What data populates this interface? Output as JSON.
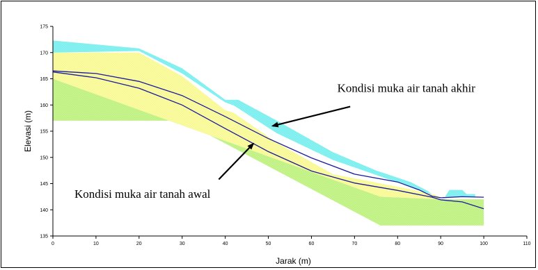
{
  "chart_data": {
    "type": "area",
    "title": "",
    "xlabel": "Jarak (m)",
    "ylabel": "Elevasi (m)",
    "xlim": [
      0,
      110
    ],
    "ylim": [
      135,
      175
    ],
    "xticks": [
      0,
      10,
      20,
      30,
      40,
      50,
      60,
      70,
      80,
      90,
      100,
      110
    ],
    "yticks": [
      135,
      140,
      145,
      150,
      155,
      160,
      165,
      170,
      175
    ],
    "grid": false,
    "colors": {
      "bottom_layer": "#c6f58c",
      "middle_layer": "#fbfb9f",
      "top_layer": "#86f2f2",
      "water_line": "#1a1aa0",
      "annotation": "#000000"
    },
    "layers": [
      {
        "name": "bottom layer",
        "color_key": "bottom_layer",
        "x": [
          0,
          30,
          76,
          100,
          100,
          90,
          76,
          0
        ],
        "y": [
          157,
          157,
          137,
          137,
          142,
          142,
          142.5,
          165
        ]
      },
      {
        "name": "middle layer",
        "color_key": "middle_layer",
        "x": [
          0,
          0,
          20,
          30,
          40,
          42,
          52,
          65,
          75,
          83,
          89,
          90,
          76,
          0
        ],
        "y": [
          165,
          170,
          170,
          165.5,
          159,
          158.5,
          152.8,
          146.8,
          145.2,
          143.9,
          142.8,
          142,
          142.5,
          165
        ]
      },
      {
        "name": "top layer",
        "color_key": "top_layer",
        "x": [
          0,
          0,
          20,
          30,
          40,
          43,
          52,
          65,
          75,
          83,
          87,
          88,
          87,
          79,
          65,
          52,
          42,
          40,
          30,
          20,
          0
        ],
        "y": [
          170,
          172.3,
          170.8,
          167,
          161,
          161,
          157,
          151,
          147.5,
          145.3,
          143.6,
          142.9,
          143.2,
          145.5,
          149.5,
          154.6,
          159.9,
          160.5,
          166,
          170.3,
          170
        ]
      },
      {
        "name": "top layer right",
        "color_key": "top_layer",
        "x": [
          91,
          92,
          95,
          96,
          98,
          98,
          91
        ],
        "y": [
          142.5,
          143.8,
          143.8,
          143,
          143,
          142.5,
          142.5
        ]
      }
    ],
    "series": [
      {
        "x": [
          0,
          10,
          20,
          30,
          40,
          50,
          60,
          70,
          80,
          85,
          88,
          90,
          95,
          100
        ],
        "y": [
          166.5,
          166,
          164.5,
          161.8,
          157.8,
          153.6,
          149.9,
          146.8,
          145.3,
          143.8,
          142.6,
          142.3,
          142.5,
          142.4
        ]
      },
      {
        "x": [
          0,
          10,
          20,
          30,
          40,
          50,
          60,
          70,
          80,
          88,
          90,
          95,
          100
        ],
        "y": [
          166.3,
          165.2,
          163.2,
          160,
          155.5,
          151.1,
          147.4,
          145.1,
          143.7,
          142.4,
          141.9,
          141.5,
          140.2
        ]
      }
    ],
    "annotations": [
      {
        "text": "Kondisi muka air tanah akhir",
        "text_at": [
          66,
          162.5
        ],
        "arrow_from": [
          69,
          159.7
        ],
        "arrow_to": [
          51,
          156
        ]
      },
      {
        "text": "Kondisi muka air tanah awal",
        "text_at": [
          5,
          142.3
        ],
        "arrow_from": [
          38.5,
          145.8
        ],
        "arrow_to": [
          46.5,
          152.6
        ]
      }
    ]
  }
}
